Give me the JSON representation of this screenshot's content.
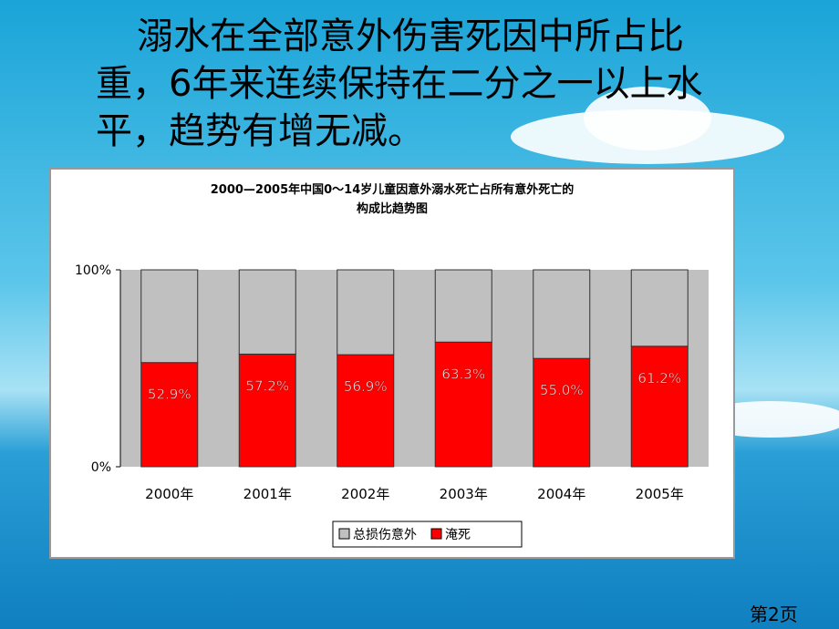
{
  "slide_text": "溺水在全部意外伤害死因中所占比重，6年来连续保持在二分之一以上水平，趋势有增无减。",
  "page_label": "第2页",
  "chart_data": {
    "type": "stacked_bar",
    "title": [
      "2000—2005年中国0～14岁儿童因意外溺水死亡占所有意外死亡的",
      "构成比趋势图"
    ],
    "categories": [
      "2000年",
      "2001年",
      "2002年",
      "2003年",
      "2004年",
      "2005年"
    ],
    "series": [
      {
        "name": "总损伤意外",
        "color": "#c0c0c0",
        "values": [
          47.1,
          42.8,
          43.1,
          36.7,
          45.0,
          38.8
        ]
      },
      {
        "name": "淹死",
        "color": "#ff0000",
        "values": [
          52.9,
          57.2,
          56.9,
          63.3,
          55.0,
          61.2
        ],
        "value_labels": [
          "52.9%",
          "57.2%",
          "56.9%",
          "63.3%",
          "55.0%",
          "61.2%"
        ]
      }
    ],
    "ylim": [
      0,
      100
    ],
    "yticks": [
      {
        "value": 0,
        "label": "0%"
      },
      {
        "value": 100,
        "label": "100%"
      }
    ],
    "legend": "bottom"
  }
}
